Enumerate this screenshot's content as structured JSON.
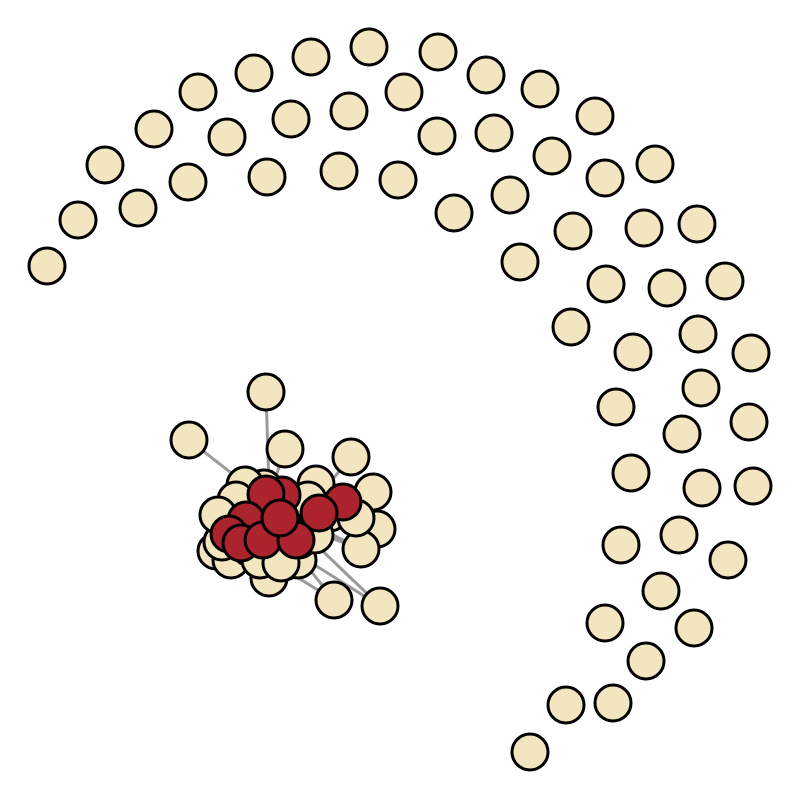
{
  "colors": {
    "background": "#ffffff",
    "node_default": "#f3e5c0",
    "node_highlight": "#ab232d",
    "node_stroke": "#000000",
    "edge": "#9a9a9a"
  },
  "graph": {
    "node_count": 117,
    "highlighted_count": 10
  }
}
